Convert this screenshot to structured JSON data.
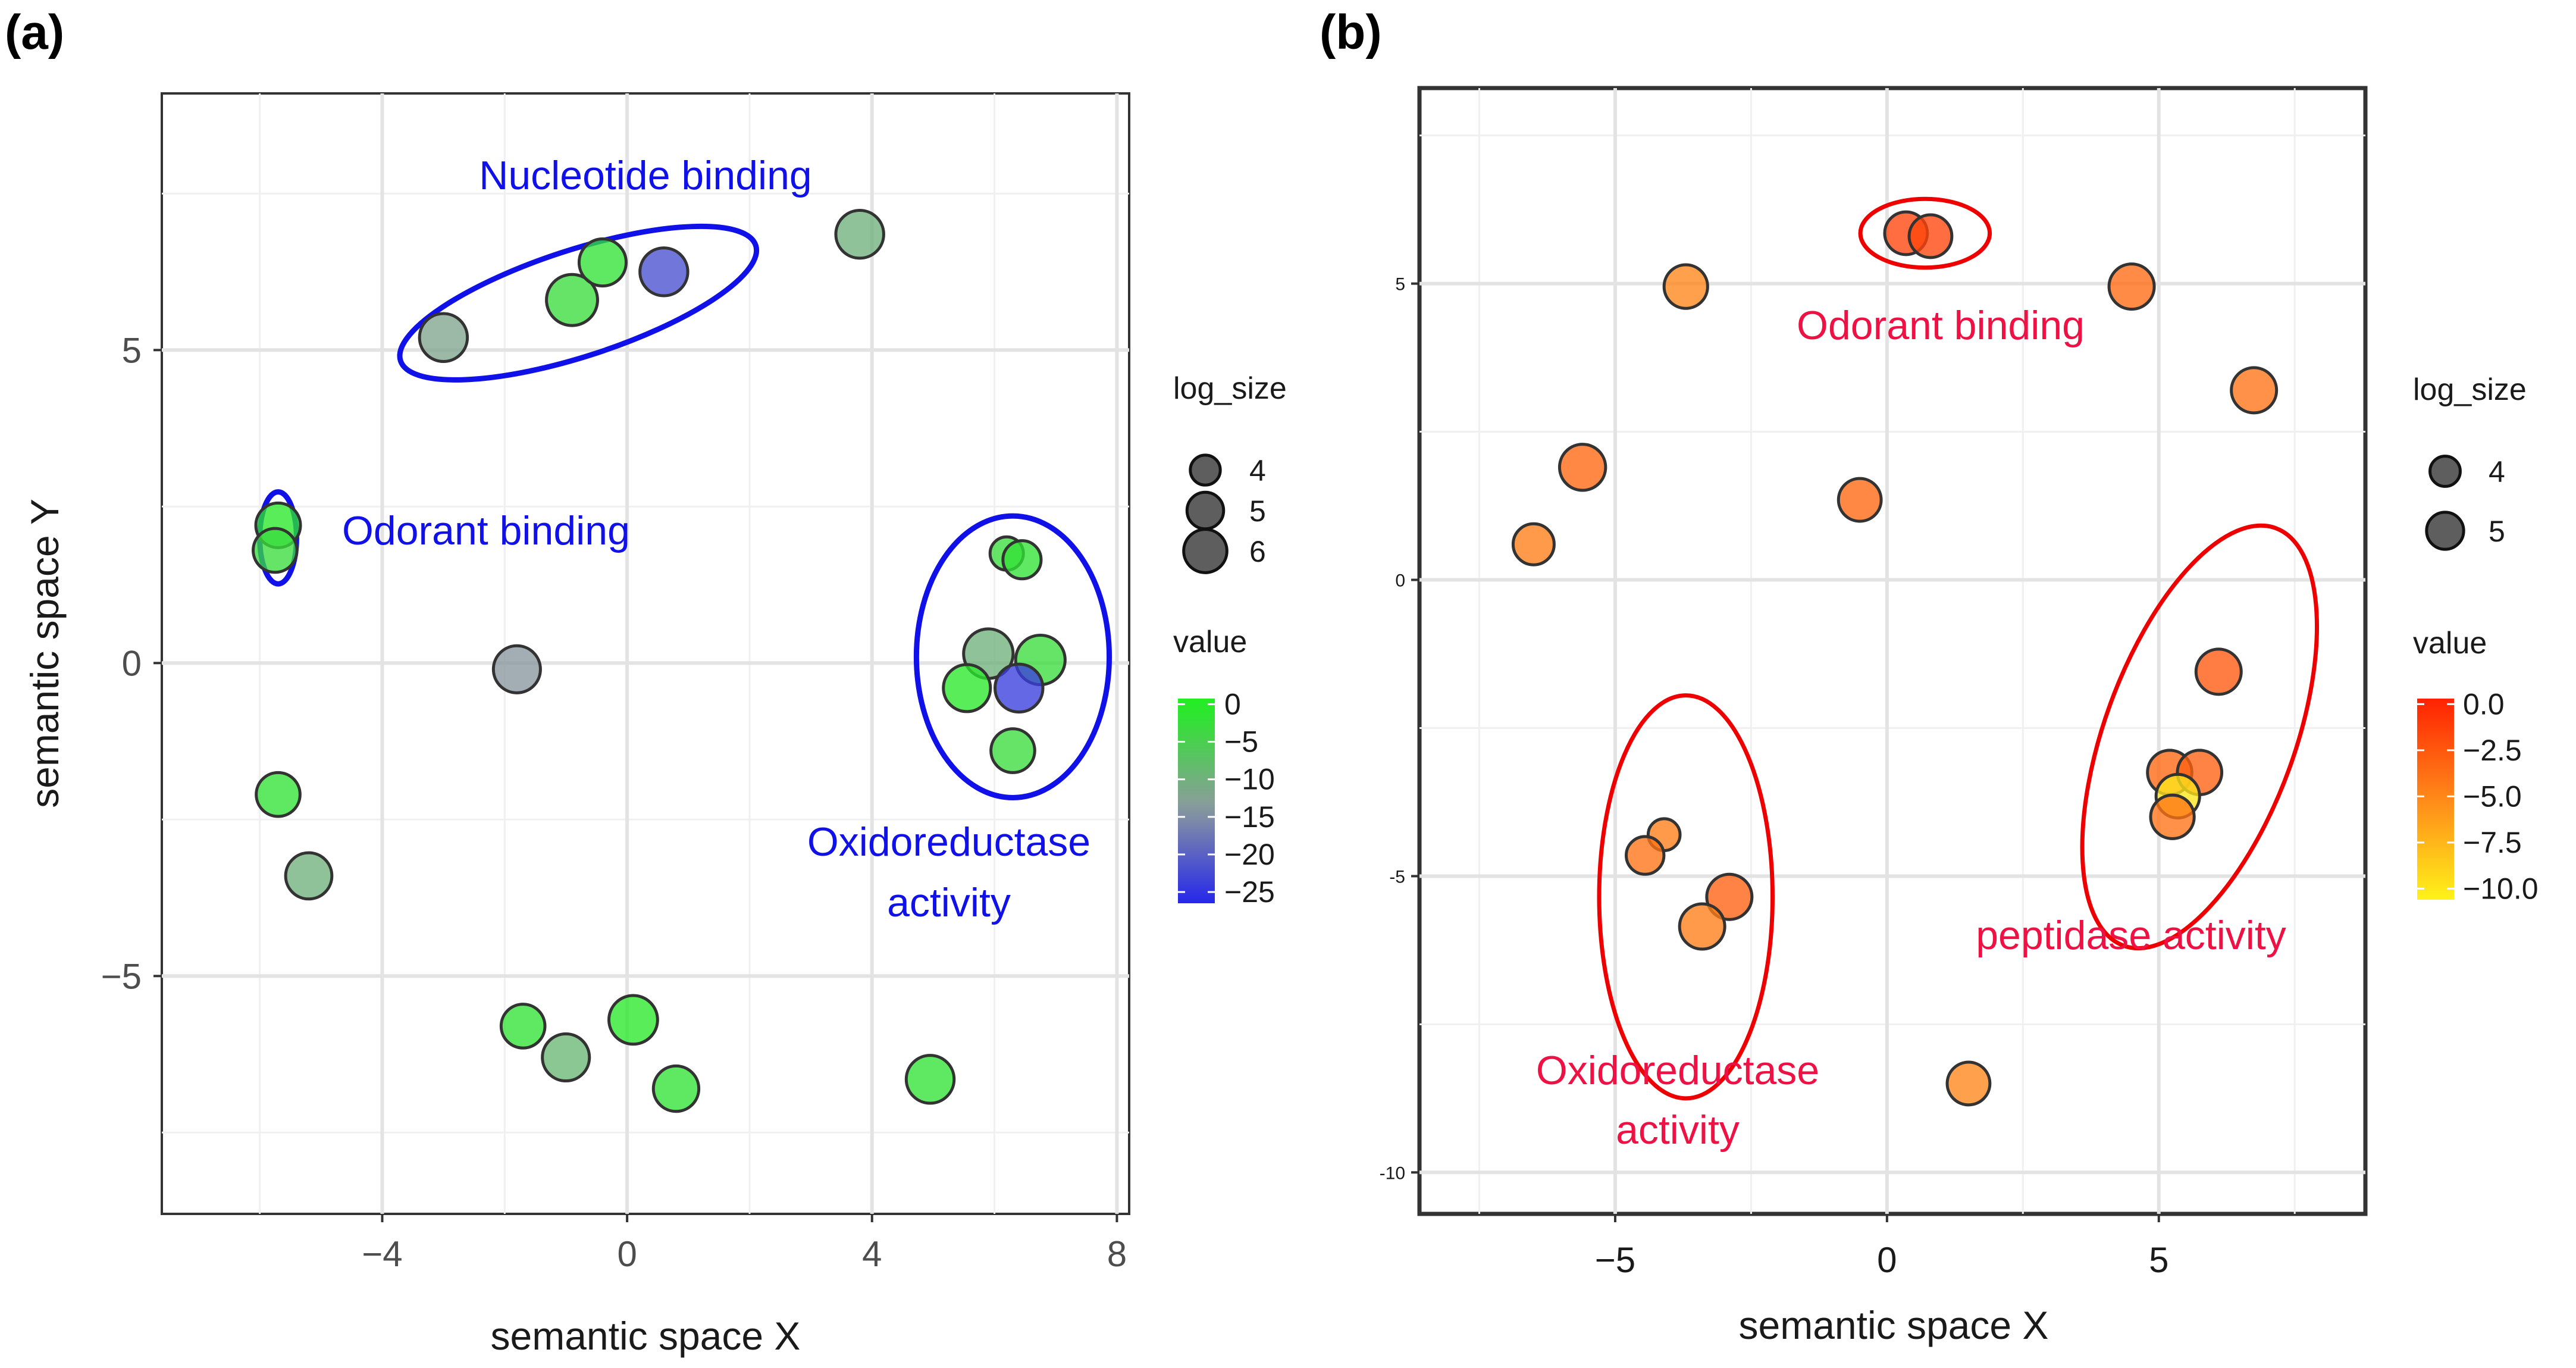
{
  "chart_data": [
    {
      "panel": "(a)",
      "type": "scatter",
      "xlabel": "semantic space X",
      "ylabel": "semantic space Y",
      "xlim": [
        -7.6,
        8.2
      ],
      "ylim": [
        -8.8,
        9.1
      ],
      "xticks": [
        -4,
        0,
        4,
        8
      ],
      "xtick_labels": [
        "−4",
        "0",
        "4",
        "8"
      ],
      "yticks": [
        -5,
        0,
        5
      ],
      "ytick_labels": [
        "−5",
        "0",
        "5"
      ],
      "legend_size_title": "log_size",
      "legend_size_entries": [
        {
          "label": "4",
          "size": 4
        },
        {
          "label": "5",
          "size": 5
        },
        {
          "label": "6",
          "size": 6
        }
      ],
      "legend_color_title": "value",
      "legend_color_ticks": [
        0,
        -5,
        -10,
        -15,
        -20,
        -25
      ],
      "legend_color_labels": [
        "0",
        "−5",
        "−10",
        "−15",
        "−20",
        "−25"
      ],
      "color_range": [
        -27,
        0
      ],
      "colors": {
        "high": "#22ee22",
        "mid": "#8c9c9c",
        "low": "#2222ee"
      },
      "points": [
        {
          "x": -3.0,
          "y": 5.2,
          "size": 5.4,
          "value": -12
        },
        {
          "x": -0.9,
          "y": 5.8,
          "size": 5.8,
          "value": -3
        },
        {
          "x": -0.4,
          "y": 6.4,
          "size": 5.3,
          "value": -2
        },
        {
          "x": 0.6,
          "y": 6.25,
          "size": 5.4,
          "value": -22
        },
        {
          "x": 3.8,
          "y": 6.85,
          "size": 5.4,
          "value": -10
        },
        {
          "x": -5.7,
          "y": 2.2,
          "size": 5.0,
          "value": -1
        },
        {
          "x": -5.75,
          "y": 1.8,
          "size": 4.9,
          "value": -3
        },
        {
          "x": -1.8,
          "y": -0.1,
          "size": 5.3,
          "value": -14
        },
        {
          "x": -5.7,
          "y": -2.1,
          "size": 4.9,
          "value": -2
        },
        {
          "x": -5.2,
          "y": -3.4,
          "size": 5.2,
          "value": -10
        },
        {
          "x": 6.2,
          "y": 1.75,
          "size": 3.6,
          "value": -3
        },
        {
          "x": 6.45,
          "y": 1.65,
          "size": 4.2,
          "value": -2
        },
        {
          "x": 5.9,
          "y": 0.15,
          "size": 5.6,
          "value": -10
        },
        {
          "x": 6.75,
          "y": 0.05,
          "size": 5.6,
          "value": -3
        },
        {
          "x": 5.55,
          "y": -0.4,
          "size": 5.3,
          "value": -1
        },
        {
          "x": 6.4,
          "y": -0.4,
          "size": 5.4,
          "value": -24
        },
        {
          "x": 6.3,
          "y": -1.4,
          "size": 4.9,
          "value": -3
        },
        {
          "x": -1.7,
          "y": -5.8,
          "size": 4.9,
          "value": -2
        },
        {
          "x": -1.0,
          "y": -6.3,
          "size": 5.3,
          "value": -9
        },
        {
          "x": 0.1,
          "y": -5.7,
          "size": 5.5,
          "value": -1
        },
        {
          "x": 0.8,
          "y": -6.8,
          "size": 5.1,
          "value": -2
        },
        {
          "x": 4.95,
          "y": -6.65,
          "size": 5.4,
          "value": -2
        }
      ],
      "ellipses": [
        {
          "cx": -0.8,
          "cy": 5.75,
          "rx": 6.1,
          "ry": 1.7,
          "angle": -18
        },
        {
          "cx": -5.7,
          "cy": 2.0,
          "rx": 0.6,
          "ry": 1.47,
          "angle": 0
        },
        {
          "cx": 6.3,
          "cy": 0.1,
          "rx": 3.15,
          "ry": 4.5,
          "angle": 0
        }
      ],
      "annotations": [
        {
          "text": "Nucleotide binding",
          "x": 1.6,
          "y": 7.5
        },
        {
          "text": "Odorant binding",
          "x": -1.7,
          "y": 2.0
        },
        {
          "text": "Oxidoreductase",
          "x": 5.7,
          "y": -3.0
        },
        {
          "text": "activity",
          "x": 5.7,
          "y": -3.95
        }
      ]
    },
    {
      "panel": "(b)",
      "type": "scatter",
      "xlabel": "semantic space X",
      "ylabel": "",
      "xlim": [
        -8.6,
        8.8
      ],
      "ylim": [
        -10.7,
        8.3
      ],
      "xticks": [
        -5,
        0,
        5
      ],
      "xtick_labels": [
        "−5",
        "0",
        "5"
      ],
      "yticks": [
        -10,
        -5,
        0,
        5
      ],
      "ytick_labels": [
        "-10",
        "-5",
        "0",
        "5"
      ],
      "legend_size_title": "log_size",
      "legend_size_entries": [
        {
          "label": "4",
          "size": 4
        },
        {
          "label": "5",
          "size": 5
        }
      ],
      "legend_color_title": "value",
      "legend_color_ticks": [
        0.0,
        -2.5,
        -5.0,
        -7.5,
        -10.0
      ],
      "legend_color_labels": [
        "0.0",
        "−2.5",
        "−5.0",
        "−7.5",
        "−10.0"
      ],
      "color_range": [
        -11.3,
        0.7
      ],
      "colors": {
        "high": "#ff1a00",
        "mid": "#ff8c1a",
        "low": "#ffff1a"
      },
      "points": [
        {
          "x": 0.35,
          "y": 5.85,
          "size": 4.7,
          "value": -1.5
        },
        {
          "x": 0.8,
          "y": 5.8,
          "size": 4.7,
          "value": -1.5
        },
        {
          "x": -3.7,
          "y": 4.95,
          "size": 4.8,
          "value": -5.0
        },
        {
          "x": 4.5,
          "y": 4.95,
          "size": 5.0,
          "value": -3.5
        },
        {
          "x": 6.75,
          "y": 3.2,
          "size": 5.0,
          "value": -4.0
        },
        {
          "x": -5.6,
          "y": 1.9,
          "size": 5.1,
          "value": -3.3
        },
        {
          "x": -0.5,
          "y": 1.35,
          "size": 4.7,
          "value": -3.3
        },
        {
          "x": -6.5,
          "y": 0.6,
          "size": 4.5,
          "value": -4.5
        },
        {
          "x": 6.1,
          "y": -1.55,
          "size": 5.0,
          "value": -2.5
        },
        {
          "x": 5.2,
          "y": -3.25,
          "size": 4.9,
          "value": -3.3
        },
        {
          "x": 5.75,
          "y": -3.25,
          "size": 4.9,
          "value": -3.0
        },
        {
          "x": 5.35,
          "y": -3.65,
          "size": 4.8,
          "value": -10.0
        },
        {
          "x": 5.25,
          "y": -4.0,
          "size": 4.8,
          "value": -4.0
        },
        {
          "x": -4.1,
          "y": -4.3,
          "size": 3.4,
          "value": -4.5
        },
        {
          "x": -4.45,
          "y": -4.65,
          "size": 4.1,
          "value": -4.0
        },
        {
          "x": -2.9,
          "y": -5.35,
          "size": 5.0,
          "value": -3.0
        },
        {
          "x": -3.4,
          "y": -5.85,
          "size": 5.0,
          "value": -4.5
        },
        {
          "x": 1.5,
          "y": -8.5,
          "size": 4.7,
          "value": -5.0
        }
      ],
      "ellipses": [
        {
          "cx": 0.7,
          "cy": 5.85,
          "rx": 2.38,
          "ry": 1.16,
          "angle": 0
        },
        {
          "cx": -3.7,
          "cy": -5.35,
          "rx": 3.19,
          "ry": 6.8,
          "angle": 0
        },
        {
          "cx": 5.75,
          "cy": -2.65,
          "rx": 3.5,
          "ry": 7.5,
          "angle": 20
        }
      ],
      "annotations": [
        {
          "text": "Odorant binding",
          "x": 1.15,
          "y": 4.15
        },
        {
          "text": "peptidase activity",
          "x": 4.65,
          "y": -6.1
        },
        {
          "text": "Oxidoreductase",
          "x": -3.8,
          "y": -8.25
        },
        {
          "text": "activity",
          "x": -3.8,
          "y": -9.25
        }
      ]
    }
  ]
}
